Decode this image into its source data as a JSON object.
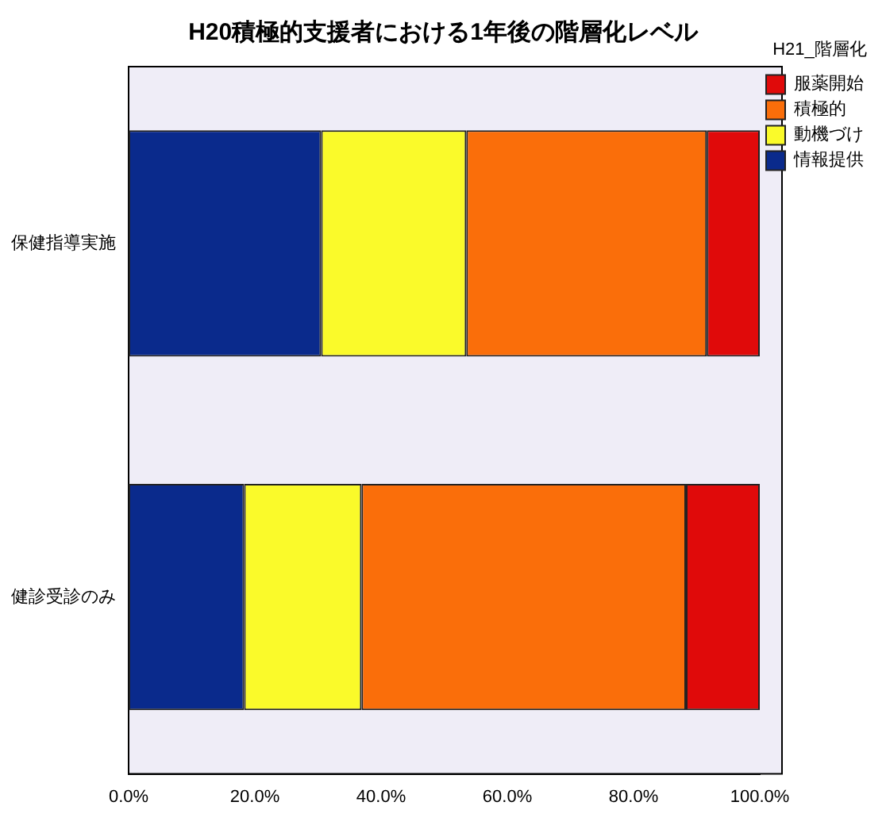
{
  "chart_data": {
    "type": "bar",
    "orientation": "horizontal",
    "stacked": true,
    "title": "H20積極的支援者における1年後の階層化レベル",
    "legend_title": "H21_階層化",
    "legend": "right",
    "grid": false,
    "categories": [
      "保健指導実施",
      "健診受診のみ"
    ],
    "series": [
      {
        "name": "情報提供",
        "color": "#0a2a8c",
        "values": [
          30.5,
          18.3
        ]
      },
      {
        "name": "動機づけ",
        "color": "#fafa2a",
        "values": [
          23.0,
          18.6
        ]
      },
      {
        "name": "積極的",
        "color": "#fa6e0a",
        "values": [
          38.1,
          51.4
        ]
      },
      {
        "name": "服薬開始",
        "color": "#e00a0a",
        "values": [
          8.4,
          11.7
        ]
      }
    ],
    "xlim": [
      0,
      100
    ],
    "xticks": [
      {
        "value": 0,
        "label": "0.0%"
      },
      {
        "value": 20,
        "label": "20.0%"
      },
      {
        "value": 40,
        "label": "40.0%"
      },
      {
        "value": 60,
        "label": "60.0%"
      },
      {
        "value": 80,
        "label": "80.0%"
      },
      {
        "value": 100,
        "label": "100.0%"
      }
    ]
  }
}
